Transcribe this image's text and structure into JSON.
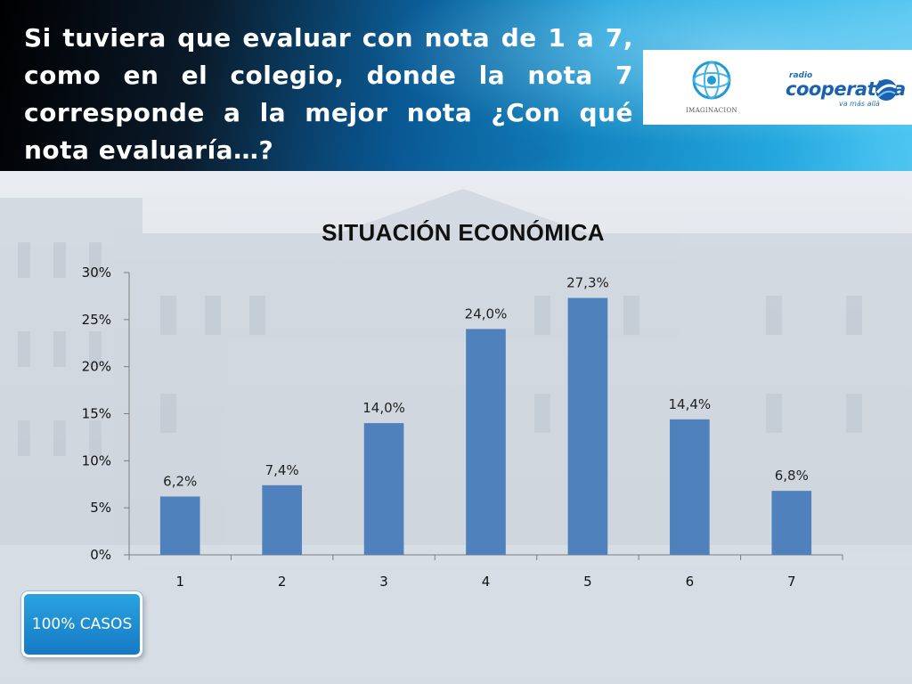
{
  "header": {
    "question": "Si tuviera que evaluar con nota de 1 a 7, como en el colegio, donde la nota 7 corresponde a la mejor nota ¿Con qué nota evaluaría…?",
    "logos": {
      "imaginacion": "IMAGINACION",
      "cooperativa_top": "radio",
      "cooperativa_main": "cooperativa",
      "cooperativa_tag": "va más allá"
    }
  },
  "chart_data": {
    "type": "bar",
    "title": "SITUACIÓN ECONÓMICA",
    "categories": [
      "1",
      "2",
      "3",
      "4",
      "5",
      "6",
      "7"
    ],
    "values": [
      6.2,
      7.4,
      14.0,
      24.0,
      27.3,
      14.4,
      6.8
    ],
    "value_labels": [
      "6,2%",
      "7,4%",
      "14,0%",
      "24,0%",
      "27,3%",
      "14,4%",
      "6,8%"
    ],
    "ylim": [
      0,
      30
    ],
    "yticks": [
      0,
      5,
      10,
      15,
      20,
      25,
      30
    ],
    "ytick_labels": [
      "0%",
      "5%",
      "10%",
      "15%",
      "20%",
      "25%",
      "30%"
    ],
    "grid": false,
    "legend": "none",
    "bar_color": "#4f81bd"
  },
  "footer": {
    "badge": "100% CASOS"
  }
}
